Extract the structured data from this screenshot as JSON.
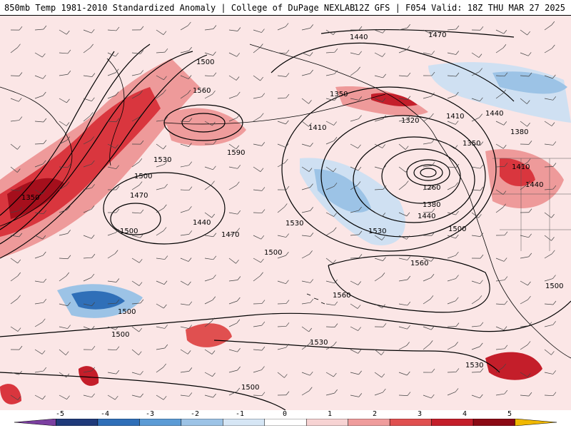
{
  "header": {
    "left": "850mb Temp 1981-2010 Standardized Anomaly | College of DuPage NEXLAB",
    "right": "12Z GFS | F054 Valid: 18Z THU MAR 27 2025"
  },
  "contour_labels": [
    "1500",
    "1440",
    "1560",
    "1590",
    "1530",
    "1500",
    "1470",
    "1440",
    "1470",
    "1500",
    "1530",
    "1350",
    "1320",
    "1410",
    "1440",
    "1470",
    "1380",
    "1350",
    "1410",
    "1440",
    "1260",
    "1380",
    "1440",
    "1500",
    "1530",
    "1560",
    "1560",
    "1530",
    "1500",
    "1530",
    "1500",
    "1500",
    "1500",
    "1410",
    "1350",
    "1500"
  ],
  "colorbar": {
    "ticks": [
      "-5",
      "-4",
      "-3",
      "-2",
      "-1",
      "0",
      "1",
      "2",
      "3",
      "4",
      "5"
    ],
    "colors": [
      "#7b3fa0",
      "#1f3a7a",
      "#2f6fb8",
      "#5b9bd5",
      "#9cc3e6",
      "#d6e6f5",
      "#ffffff",
      "#f7d3d3",
      "#ef9c9c",
      "#e05050",
      "#c41e2a",
      "#8b0a14",
      "#f0b800"
    ]
  },
  "colors": {
    "warm_light": "#f6cfcf",
    "warm_mid": "#ee9a9a",
    "warm_strong": "#d9363e",
    "warm_extreme": "#a50f1c",
    "cool_light": "#cfe0f2",
    "cool_mid": "#7fb0e0",
    "cool_strong": "#2f6fb8"
  }
}
